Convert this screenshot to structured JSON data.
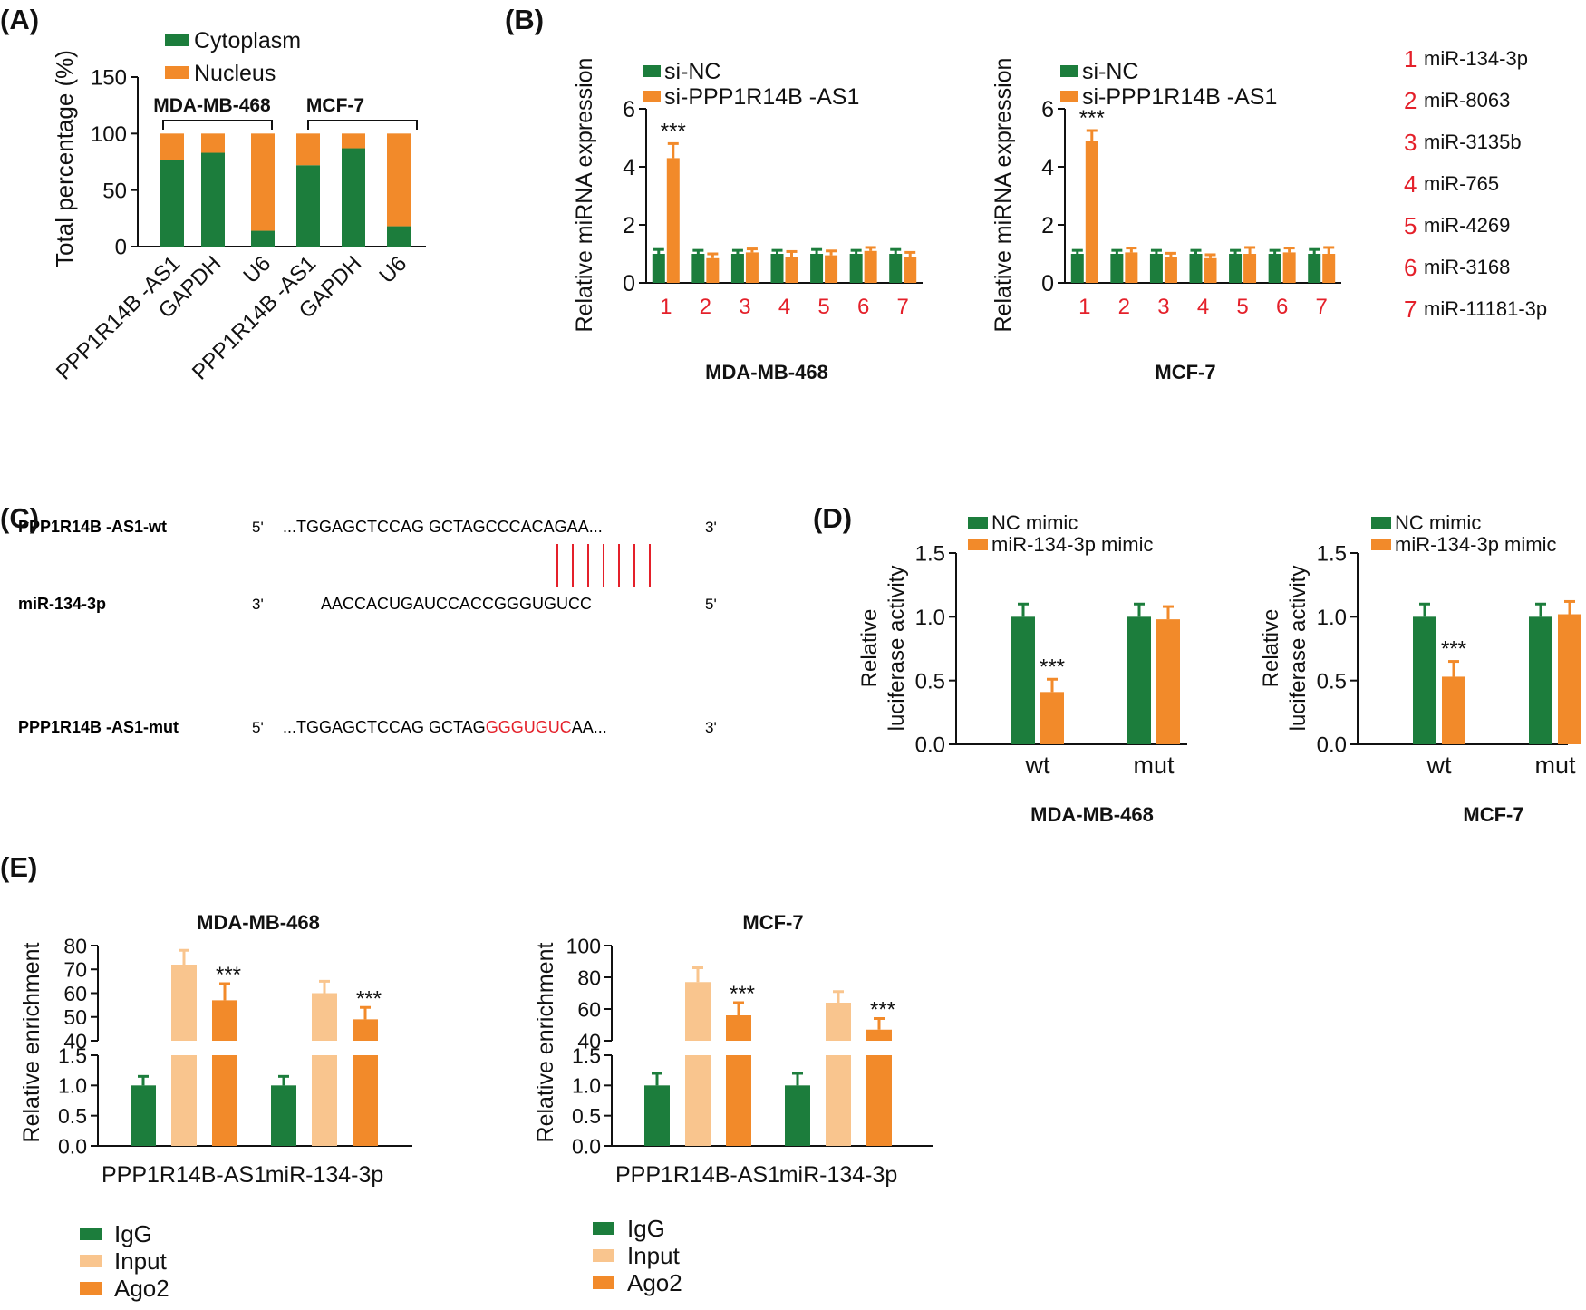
{
  "colors": {
    "green": "#1c7d3c",
    "orange": "#f28a2a",
    "light_orange": "#f9c58e",
    "red": "#e4202a",
    "black": "#111111"
  },
  "panel_labels": [
    "(A)",
    "(B)",
    "(C)",
    "(D)",
    "(E)"
  ],
  "chart_data": [
    {
      "id": "A",
      "type": "bar",
      "stacked": true,
      "title": "",
      "ylabel": "Total percentage (%)",
      "ylim": [
        0,
        150
      ],
      "yticks": [
        "0",
        "50",
        "100",
        "150"
      ],
      "categories": [
        "PPP1R14B -AS1",
        "GAPDH",
        "U6",
        "PPP1R14B -AS1",
        "GAPDH",
        "U6"
      ],
      "groups": [
        {
          "label": "MDA-MB-468",
          "members": [
            0,
            1,
            2
          ]
        },
        {
          "label": "MCF-7",
          "members": [
            3,
            4,
            5
          ]
        }
      ],
      "series": [
        {
          "name": "Cytoplasm",
          "color": "#1c7d3c",
          "values": [
            77,
            83,
            14,
            72,
            87,
            18
          ]
        },
        {
          "name": "Nucleus",
          "color": "#f28a2a",
          "values": [
            23,
            17,
            86,
            28,
            13,
            82
          ]
        }
      ]
    },
    {
      "id": "B1",
      "type": "bar",
      "title": "",
      "xlabel": "MDA-MB-468",
      "ylabel": "Relative miRNA expression",
      "ylim": [
        0,
        6
      ],
      "yticks": [
        "0",
        "2",
        "4",
        "6"
      ],
      "categories": [
        "1",
        "2",
        "3",
        "4",
        "5",
        "6",
        "7"
      ],
      "series": [
        {
          "name": "si-NC",
          "color": "#1c7d3c",
          "values": [
            1.0,
            1.0,
            1.0,
            1.0,
            1.0,
            1.0,
            1.0
          ],
          "errors": [
            0.15,
            0.12,
            0.12,
            0.12,
            0.15,
            0.12,
            0.15
          ]
        },
        {
          "name": "si-PPP1R14B -AS1",
          "color": "#f28a2a",
          "values": [
            4.3,
            0.85,
            1.05,
            0.9,
            0.95,
            1.1,
            0.9
          ],
          "errors": [
            0.5,
            0.15,
            0.12,
            0.18,
            0.15,
            0.12,
            0.15
          ]
        }
      ],
      "annotations": [
        {
          "category": "1",
          "text": "***"
        }
      ]
    },
    {
      "id": "B2",
      "type": "bar",
      "title": "",
      "xlabel": "MCF-7",
      "ylabel": "Relative miRNA expression",
      "ylim": [
        0,
        6
      ],
      "yticks": [
        "0",
        "2",
        "4",
        "6"
      ],
      "categories": [
        "1",
        "2",
        "3",
        "4",
        "5",
        "6",
        "7"
      ],
      "series": [
        {
          "name": "si-NC",
          "color": "#1c7d3c",
          "values": [
            1.0,
            1.0,
            1.0,
            1.0,
            1.0,
            1.0,
            1.0
          ],
          "errors": [
            0.12,
            0.12,
            0.12,
            0.12,
            0.12,
            0.12,
            0.15
          ]
        },
        {
          "name": "si-PPP1R14B -AS1",
          "color": "#f28a2a",
          "values": [
            4.9,
            1.05,
            0.9,
            0.85,
            1.0,
            1.05,
            1.0
          ],
          "errors": [
            0.35,
            0.15,
            0.12,
            0.12,
            0.22,
            0.15,
            0.22
          ]
        }
      ],
      "annotations": [
        {
          "category": "1",
          "text": "***"
        }
      ]
    },
    {
      "id": "D1",
      "type": "bar",
      "title": "",
      "xlabel": "MDA-MB-468",
      "ylabel": "Relative luciferase activity",
      "ylim": [
        0,
        1.5
      ],
      "yticks": [
        "0.0",
        "0.5",
        "1.0",
        "1.5"
      ],
      "categories": [
        "wt",
        "mut"
      ],
      "series": [
        {
          "name": "NC mimic",
          "color": "#1c7d3c",
          "values": [
            1.0,
            1.0
          ],
          "errors": [
            0.1,
            0.1
          ]
        },
        {
          "name": "miR-134-3p mimic",
          "color": "#f28a2a",
          "values": [
            0.41,
            0.98
          ],
          "errors": [
            0.1,
            0.1
          ]
        }
      ],
      "annotations": [
        {
          "category": "wt",
          "text": "***"
        }
      ]
    },
    {
      "id": "D2",
      "type": "bar",
      "title": "",
      "xlabel": "MCF-7",
      "ylabel": "Relative luciferase activity",
      "ylim": [
        0,
        1.5
      ],
      "yticks": [
        "0.0",
        "0.5",
        "1.0",
        "1.5"
      ],
      "categories": [
        "wt",
        "mut"
      ],
      "series": [
        {
          "name": "NC mimic",
          "color": "#1c7d3c",
          "values": [
            1.0,
            1.0
          ],
          "errors": [
            0.1,
            0.1
          ]
        },
        {
          "name": "miR-134-3p mimic",
          "color": "#f28a2a",
          "values": [
            0.53,
            1.02
          ],
          "errors": [
            0.12,
            0.1
          ]
        }
      ],
      "annotations": [
        {
          "category": "wt",
          "text": "***"
        }
      ]
    },
    {
      "id": "E1",
      "type": "bar",
      "broken_axis": true,
      "title": "MDA-MB-468",
      "ylabel": "Relative enrichment",
      "lower_ylim": [
        0,
        1.5
      ],
      "lower_yticks": [
        "0.0",
        "0.5",
        "1.0",
        "1.5"
      ],
      "upper_ylim": [
        40,
        80
      ],
      "upper_yticks": [
        "40",
        "50",
        "60",
        "70",
        "80"
      ],
      "categories": [
        "PPP1R14B-AS1",
        "miR-134-3p"
      ],
      "series": [
        {
          "name": "IgG",
          "color": "#1c7d3c",
          "values": [
            1.0,
            1.0
          ],
          "errors": [
            0.15,
            0.15
          ]
        },
        {
          "name": "Input",
          "color": "#f9c58e",
          "values": [
            72,
            60
          ],
          "errors": [
            6,
            5
          ]
        },
        {
          "name": "Ago2",
          "color": "#f28a2a",
          "values": [
            57,
            49
          ],
          "errors": [
            7,
            5
          ]
        }
      ],
      "annotations": [
        {
          "category": "PPP1R14B-AS1",
          "text": "***"
        },
        {
          "category": "miR-134-3p",
          "text": "***"
        }
      ]
    },
    {
      "id": "E2",
      "type": "bar",
      "broken_axis": true,
      "title": "MCF-7",
      "ylabel": "Relative enrichment",
      "lower_ylim": [
        0,
        1.5
      ],
      "lower_yticks": [
        "0.0",
        "0.5",
        "1.0",
        "1.5"
      ],
      "upper_ylim": [
        40,
        100
      ],
      "upper_yticks": [
        "40",
        "60",
        "80",
        "100"
      ],
      "categories": [
        "PPP1R14B-AS1",
        "miR-134-3p"
      ],
      "series": [
        {
          "name": "IgG",
          "color": "#1c7d3c",
          "values": [
            1.0,
            1.0
          ],
          "errors": [
            0.2,
            0.2
          ]
        },
        {
          "name": "Input",
          "color": "#f9c58e",
          "values": [
            77,
            64
          ],
          "errors": [
            9,
            7
          ]
        },
        {
          "name": "Ago2",
          "color": "#f28a2a",
          "values": [
            56,
            47
          ],
          "errors": [
            8,
            7
          ]
        }
      ],
      "annotations": [
        {
          "category": "PPP1R14B-AS1",
          "text": "***"
        },
        {
          "category": "miR-134-3p",
          "text": "***"
        }
      ]
    }
  ],
  "mirna_key": {
    "numbers": [
      "1",
      "2",
      "3",
      "4",
      "5",
      "6",
      "7"
    ],
    "names": [
      "miR-134-3p",
      "miR-8063",
      "miR-3135b",
      "miR-765",
      "miR-4269",
      "miR-3168",
      "miR-11181-3p"
    ]
  },
  "sequence_panel": {
    "rows": [
      {
        "label": "PPP1R14B -AS1-wt",
        "end5": "5'",
        "seq_black": "...TGGAGCTCCAG GCTAGCCCACAGAA...",
        "seq_red": "",
        "seq_tail": "",
        "end3": "3'"
      },
      {
        "label": "miR-134-3p",
        "end5": "3'",
        "seq_black": "AACCACUGAUCCACCGGGUGUCC",
        "seq_red": "",
        "seq_tail": "",
        "end3": "5'"
      },
      {
        "label": "PPP1R14B -AS1-mut",
        "end5": "5'",
        "seq_black": "...TGGAGCTCCAG GCTAG",
        "seq_red": "GGGUGUC",
        "seq_tail": "AA...",
        "end3": "3'"
      }
    ],
    "pairing_lines": 7
  }
}
